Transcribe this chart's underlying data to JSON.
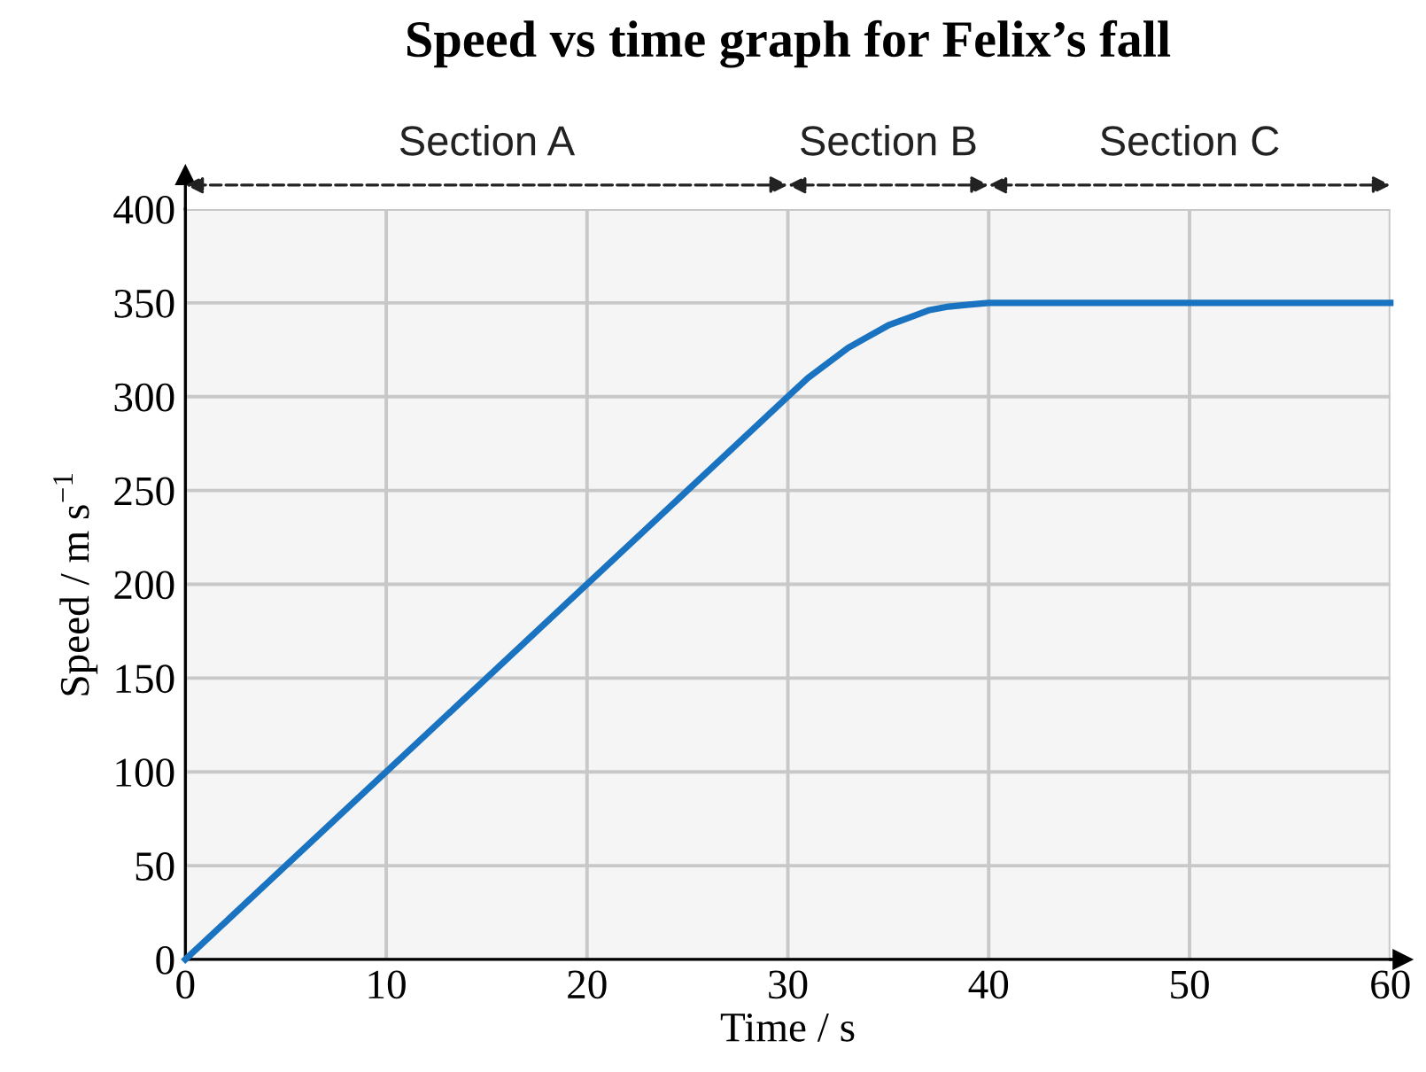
{
  "chart_data": {
    "type": "line",
    "title": "Speed vs time graph for Felix’s fall",
    "xlabel": "Time / s",
    "ylabel": "Speed / m s$^{−1}$",
    "x": [
      0,
      10,
      20,
      30,
      31,
      32,
      33,
      34,
      35,
      36,
      37,
      38,
      39,
      40,
      50,
      60
    ],
    "series": [
      {
        "color": "#1a73c0",
        "values": [
          0,
          100,
          200,
          300,
          310,
          318,
          326,
          332,
          338,
          342,
          346,
          348,
          349,
          350,
          350,
          350
        ]
      }
    ],
    "xlim": [
      0,
      60
    ],
    "ylim": [
      0,
      400
    ],
    "xticks": [
      0,
      10,
      20,
      30,
      40,
      50,
      60
    ],
    "yticks": [
      0,
      50,
      100,
      150,
      200,
      250,
      300,
      350,
      400
    ],
    "bands": [
      {
        "axis": "x",
        "from": 0,
        "to": 30,
        "label": "Section A"
      },
      {
        "axis": "x",
        "from": 30,
        "to": 40,
        "label": "Section B"
      },
      {
        "axis": "x",
        "from": 40,
        "to": 60,
        "label": "Section C"
      }
    ],
    "grid": true,
    "marker": "none",
    "line_style": "solid"
  }
}
